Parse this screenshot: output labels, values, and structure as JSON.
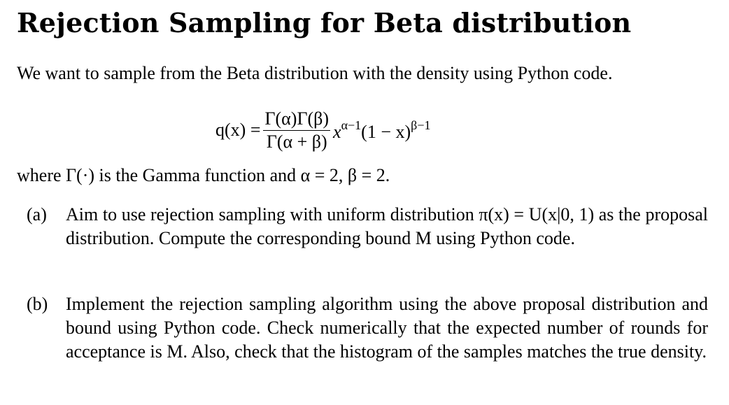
{
  "title": "Rejection Sampling for Beta distribution",
  "intro": "We want to sample from the Beta distribution with the density using Python code.",
  "equation": {
    "lhs": "q(x) =",
    "numerator": "Γ(α)Γ(β)",
    "denominator": "Γ(α + β)",
    "factor1_base": "x",
    "factor1_exp": "α−1",
    "factor2_base": "(1 − x)",
    "factor2_exp": "β−1"
  },
  "where_text": "where Γ(·) is the Gamma function and α = 2, β = 2.",
  "items": [
    {
      "marker": "(a)",
      "text": "Aim to use rejection sampling with uniform distribution π(x) = U(x|0, 1) as the proposal distribution. Compute the corresponding bound M using Python code."
    },
    {
      "marker": "(b)",
      "text": "Implement the rejection sampling algorithm using the above proposal distribution and bound using Python code. Check numerically that the expected number of rounds for acceptance is M. Also, check that the histogram of the samples matches the true density."
    }
  ]
}
